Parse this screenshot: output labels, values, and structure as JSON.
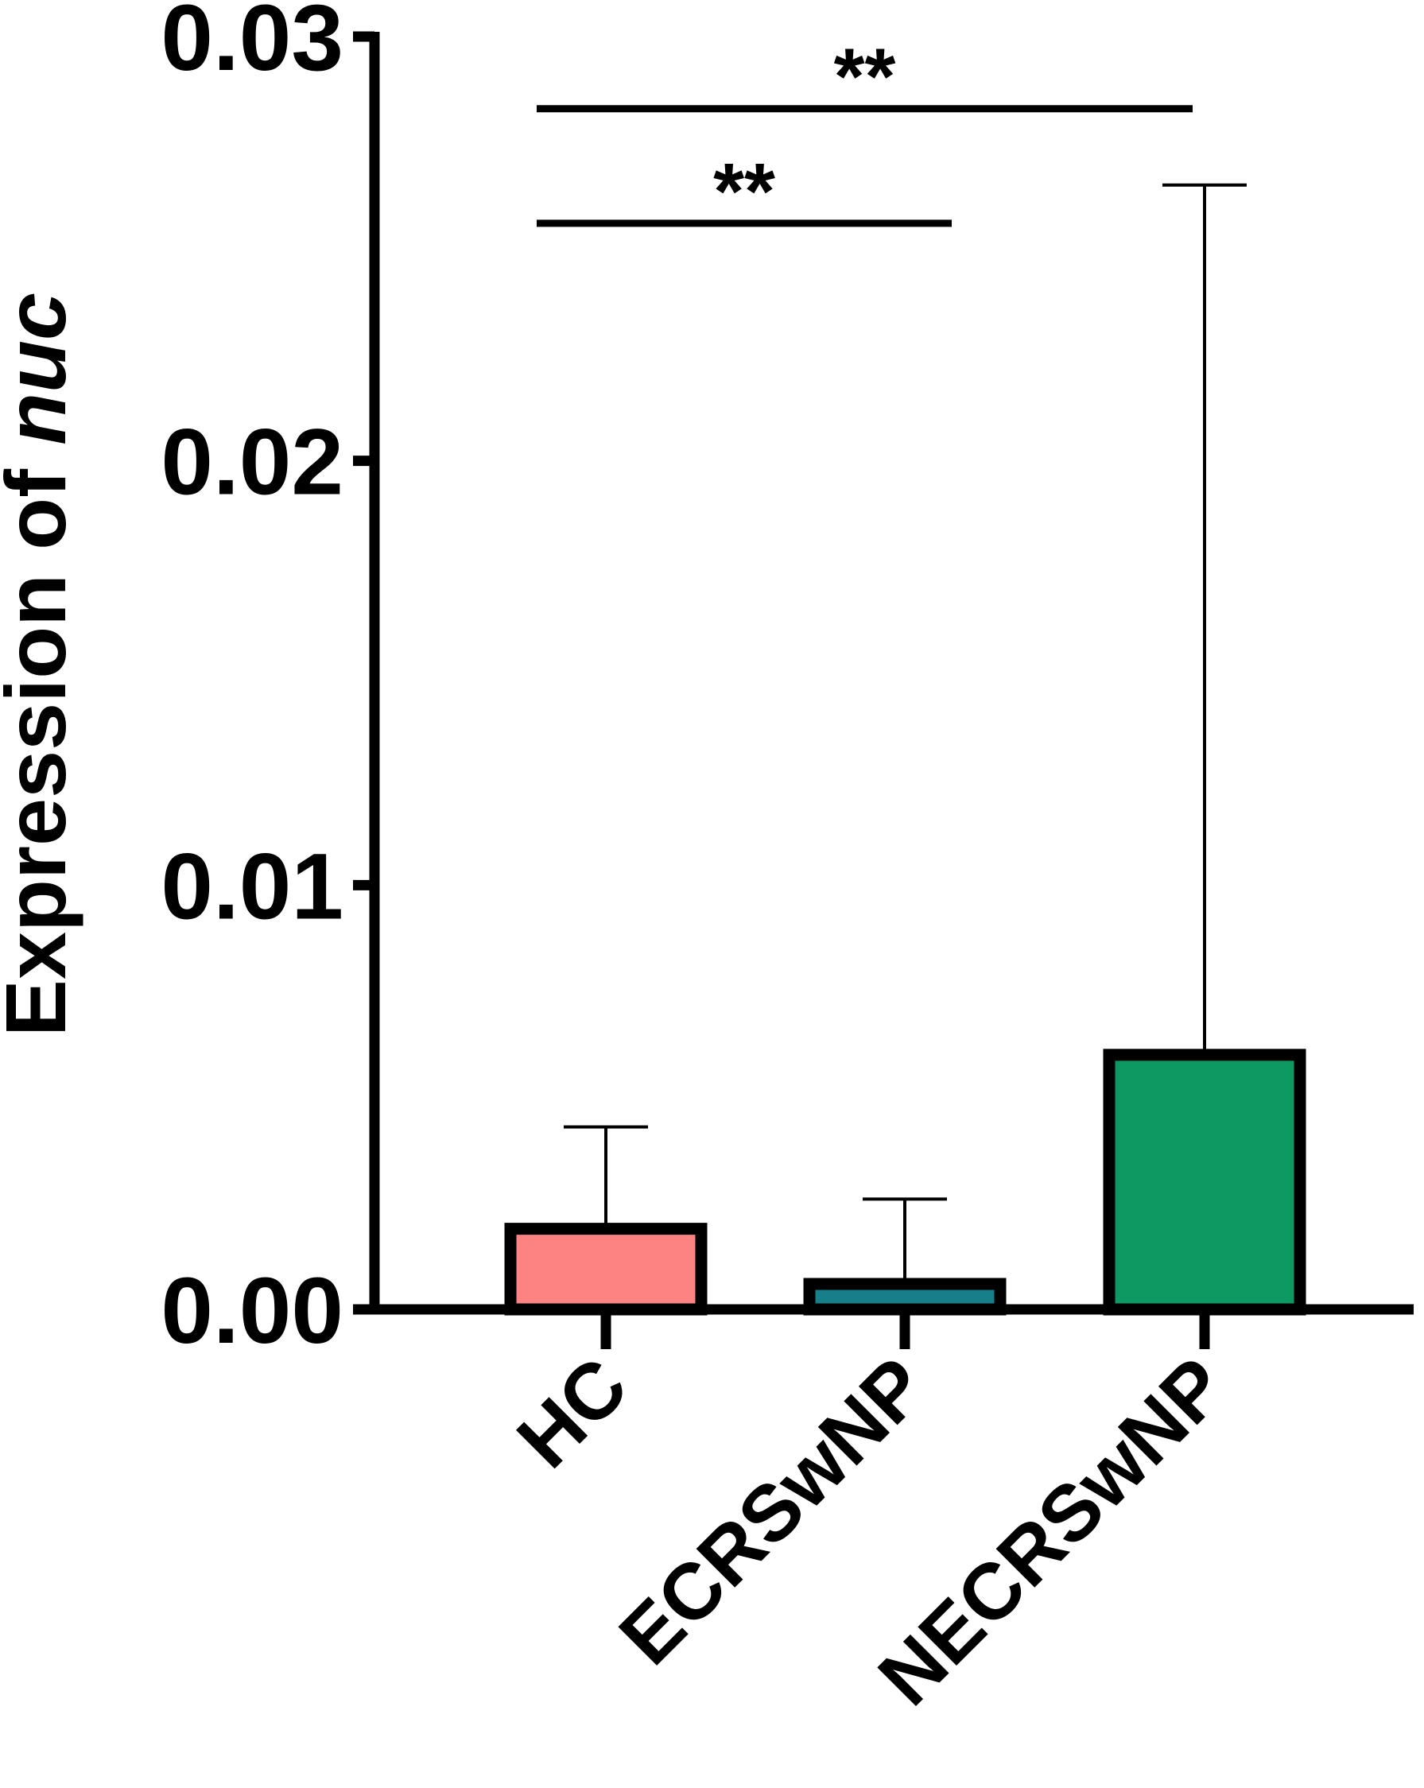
{
  "chart_data": {
    "type": "bar",
    "categories": [
      "HC",
      "ECRSwNP",
      "NECRSwNP"
    ],
    "values": [
      0.0019,
      0.0006,
      0.006
    ],
    "errors": [
      0.0043,
      0.0026,
      0.0265
    ],
    "colors": [
      "#fd8282",
      "#167f89",
      "#0e9963"
    ],
    "ylabel": [
      "Expression of ",
      "nuc"
    ],
    "ylim": [
      0,
      0.03
    ],
    "yticks": [
      0.0,
      0.01,
      0.02,
      0.03
    ],
    "ytick_labels": [
      "0.00",
      "0.01",
      "0.02",
      "0.03"
    ],
    "significance": [
      {
        "from": 0,
        "to": 2,
        "label": "**",
        "y": 0.0283
      },
      {
        "from": 0,
        "to": 1,
        "label": "**",
        "y": 0.0256
      }
    ]
  }
}
